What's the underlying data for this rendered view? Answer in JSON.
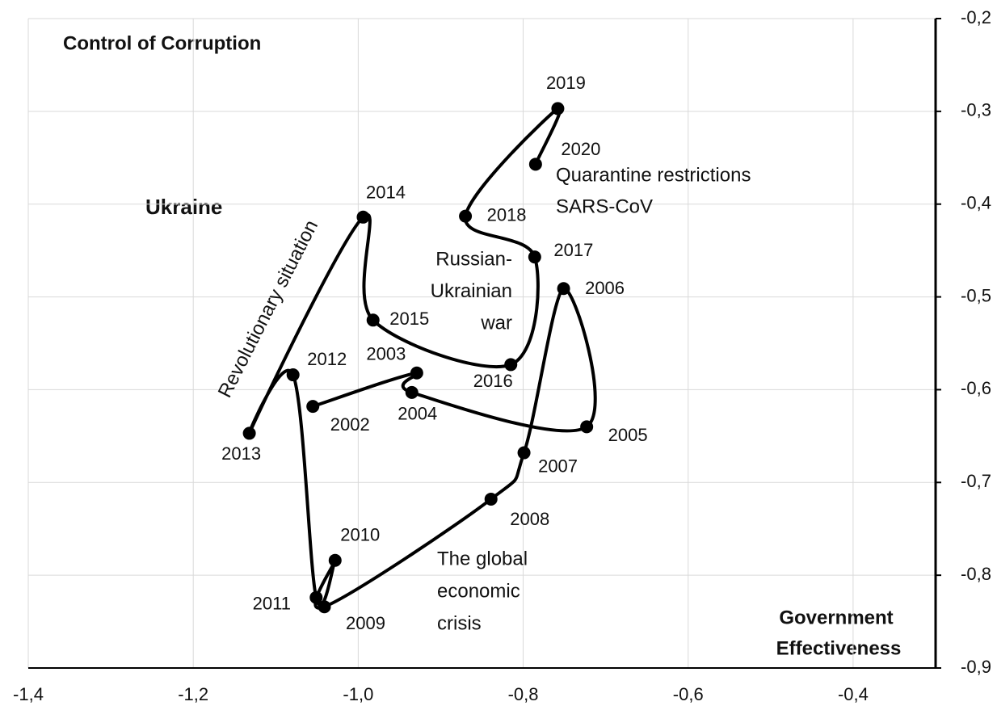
{
  "chart_data": {
    "type": "line",
    "title": "Ukraine",
    "y_label": "Control of Corruption",
    "x_label": [
      "Government",
      "Effectiveness"
    ],
    "labels": [
      "2002",
      "2003",
      "2004",
      "2005",
      "2006",
      "2007",
      "2008",
      "2009",
      "2010",
      "2011",
      "2012",
      "2013",
      "2014",
      "2015",
      "2016",
      "2017",
      "2018",
      "2019",
      "2020"
    ],
    "x": [
      -1.055,
      -0.929,
      -0.935,
      -0.723,
      -0.751,
      -0.799,
      -0.839,
      -1.041,
      -1.028,
      -1.051,
      -1.079,
      -1.132,
      -0.994,
      -0.982,
      -0.815,
      -0.786,
      -0.87,
      -0.758,
      -0.785
    ],
    "values": [
      -0.618,
      -0.582,
      -0.603,
      -0.64,
      -0.491,
      -0.668,
      -0.718,
      -0.834,
      -0.784,
      -0.824,
      -0.584,
      -0.647,
      -0.414,
      -0.525,
      -0.573,
      -0.457,
      -0.413,
      -0.297,
      -0.357
    ],
    "color": "#000000",
    "annotations": [
      {
        "lines": [
          "Revolutionary situation"
        ]
      },
      {
        "lines": [
          "Russian-",
          "Ukrainian",
          "war"
        ]
      },
      {
        "lines": [
          "Quarantine restrictions",
          "SARS-CoV"
        ]
      },
      {
        "lines": [
          "The global",
          "economic",
          "crisis"
        ]
      }
    ],
    "xlim": [
      -1.4,
      -0.3
    ],
    "xticks": [
      {
        "value": -1.4,
        "label": "-1,4"
      },
      {
        "value": -1.2,
        "label": "-1,2"
      },
      {
        "value": -1.0,
        "label": "-1,0"
      },
      {
        "value": -0.8,
        "label": "-0,8"
      },
      {
        "value": -0.6,
        "label": "-0,6"
      },
      {
        "value": -0.4,
        "label": "-0,4"
      }
    ],
    "ylim": [
      -0.9,
      -0.2
    ],
    "yticks": [
      {
        "value": -0.9,
        "label": "-0,9"
      },
      {
        "value": -0.8,
        "label": "-0,8"
      },
      {
        "value": -0.7,
        "label": "-0,7"
      },
      {
        "value": -0.6,
        "label": "-0,6"
      },
      {
        "value": -0.5,
        "label": "-0,5"
      },
      {
        "value": -0.4,
        "label": "-0,4"
      },
      {
        "value": -0.3,
        "label": "-0,3"
      },
      {
        "value": -0.2,
        "label": "-0,2"
      }
    ],
    "grid": true
  }
}
